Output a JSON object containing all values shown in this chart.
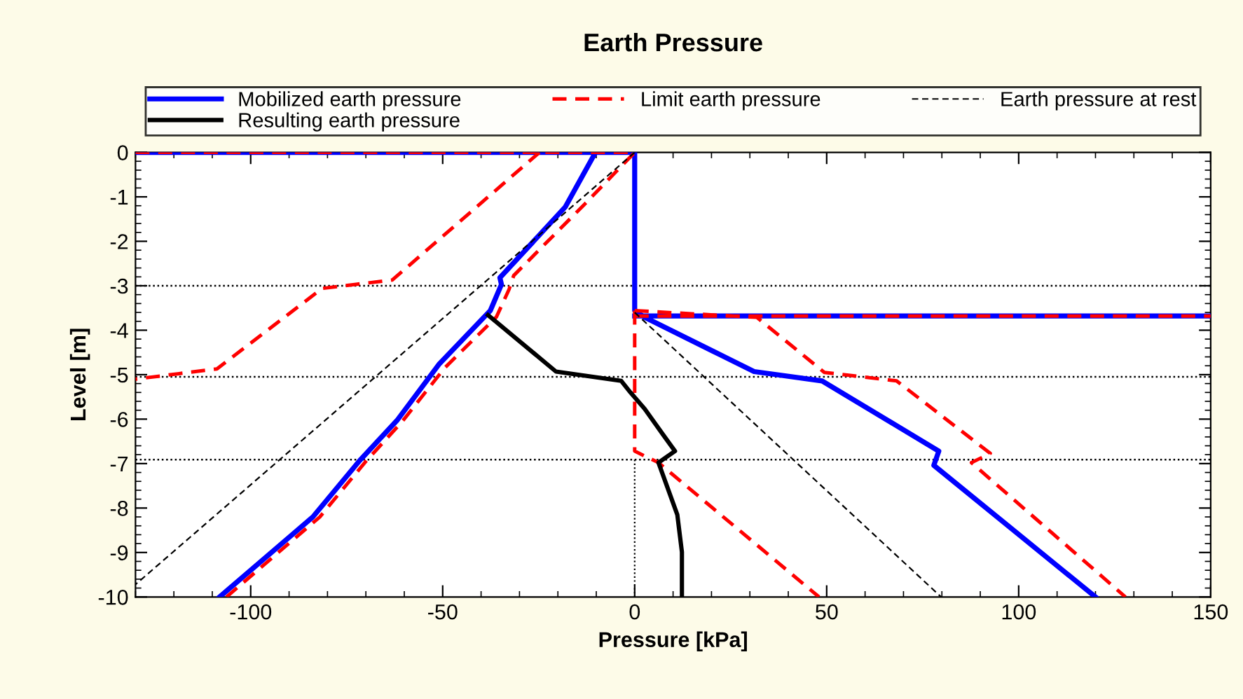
{
  "chart_data": {
    "type": "line",
    "title": "Earth Pressure",
    "xlabel": "Pressure [kPa]",
    "ylabel": "Level [m]",
    "xlim": [
      -130,
      150
    ],
    "xticks": [
      -100,
      -50,
      0,
      50,
      100,
      150
    ],
    "ylim": [
      -10,
      0
    ],
    "yticks": [
      0,
      -1,
      -2,
      -3,
      -4,
      -5,
      -6,
      -7,
      -8,
      -9,
      -10
    ],
    "grid": false,
    "legend": "top",
    "marker": "none",
    "series": [
      {
        "name": "Mobilized earth pressure",
        "color": "#0000ff",
        "line_style": "solid",
        "x": [
          -130,
          0,
          0,
          2.6,
          31.1,
          48.8,
          79.2,
          77.9,
          120,
          null,
          -10.2,
          -18.1,
          -35.1,
          -34.7,
          -37.6,
          -51,
          -61.9,
          -71.6,
          -83.8,
          -108.1,
          null,
          0,
          150
        ],
        "values": [
          0,
          0,
          -3.56,
          -3.71,
          -4.93,
          -5.14,
          -6.72,
          -7.04,
          -10,
          null,
          0,
          -1.23,
          -2.82,
          -2.97,
          -3.56,
          -4.77,
          -6.03,
          -6.93,
          -8.2,
          -10,
          null,
          -3.68,
          -3.68
        ]
      },
      {
        "name": "Limit earth pressure",
        "color": "#ff0000",
        "line_style": "dashed",
        "x": [
          -130,
          0,
          -13.2,
          -31.5,
          -32.7,
          -36,
          -49.5,
          -60.5,
          -70,
          -82,
          -106.3,
          null,
          -24.8,
          -63.1,
          -81.4,
          -108.8,
          -130,
          null,
          0,
          0,
          6.2,
          48,
          null,
          0,
          31.8,
          49.4,
          68.2,
          92.6,
          87.7,
          127.8,
          null,
          0,
          150
        ],
        "values": [
          0,
          0,
          -1.18,
          -2.77,
          -3.08,
          -3.7,
          -4.85,
          -6.05,
          -6.95,
          -8.2,
          -10,
          null,
          0,
          -2.87,
          -3.06,
          -4.87,
          -5.1,
          null,
          -3.56,
          -6.72,
          -6.98,
          -10,
          null,
          -3.56,
          -3.71,
          -4.95,
          -5.14,
          -6.77,
          -6.98,
          -10,
          null,
          -3.68,
          -3.68
        ]
      },
      {
        "name": "Earth pressure at rest",
        "color": "#000000",
        "line_style": "dashed",
        "x": [
          0,
          -130,
          null,
          0,
          79.8
        ],
        "values": [
          0,
          -9.72,
          null,
          -3.6,
          -10
        ]
      },
      {
        "name": "Resulting earth pressure",
        "color": "#000000",
        "line_style": "solid",
        "x": [
          -38.2,
          -20.5,
          -3.5,
          -1.1,
          2.6,
          7.4,
          10.5,
          6.2,
          11.1,
          12.3,
          12.3
        ],
        "values": [
          -3.66,
          -4.93,
          -5.14,
          -5.4,
          -5.77,
          -6.35,
          -6.72,
          -6.98,
          -8.15,
          -8.99,
          -10
        ]
      },
      {
        "color": "#000000",
        "line_style": "dotted",
        "x": [
          0,
          0
        ],
        "values": [
          -6.91,
          -10
        ]
      }
    ],
    "ref_lines": [
      {
        "axis": "y",
        "value": -3,
        "color": "#000000",
        "line_style": "dotted"
      },
      {
        "axis": "y",
        "value": -5.05,
        "color": "#000000",
        "line_style": "dotted"
      },
      {
        "axis": "y",
        "value": -6.91,
        "color": "#000000",
        "line_style": "dotted"
      }
    ]
  }
}
